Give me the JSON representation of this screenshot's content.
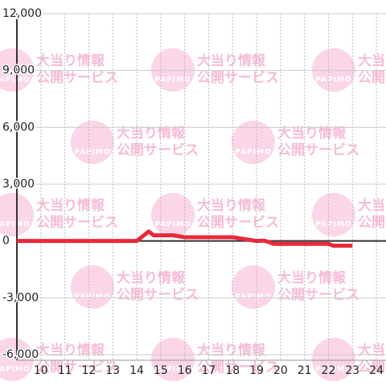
{
  "chart_data": {
    "type": "line",
    "watermark": {
      "line1": "大当り情報",
      "line2": "公開サービス",
      "logo": "PAPIMO"
    },
    "x": [
      9,
      14,
      14.3,
      14.5,
      14.7,
      15.5,
      16,
      18,
      18.5,
      19,
      19.3,
      19.5,
      19.7,
      21,
      22,
      22.2,
      23
    ],
    "series": [
      {
        "color": "#e8283c",
        "values": [
          0,
          0,
          300,
          500,
          300,
          300,
          200,
          200,
          100,
          0,
          20,
          -50,
          -150,
          -150,
          -150,
          -250,
          -250
        ]
      }
    ],
    "xlim": [
      9,
      24.4
    ],
    "xticks": [
      10,
      11,
      12,
      13,
      14,
      15,
      16,
      17,
      18,
      19,
      20,
      21,
      22,
      23,
      24
    ],
    "ylim": [
      -6000,
      12000
    ],
    "yticks": [
      {
        "value": -6000,
        "label": "-6,000"
      },
      {
        "value": -3000,
        "label": "-3,000"
      },
      0,
      {
        "value": 3000,
        "label": "3,000"
      },
      {
        "value": 6000,
        "label": "6,000"
      },
      {
        "value": 9000,
        "label": "9,000"
      },
      {
        "value": 12000,
        "label": "12,000"
      }
    ],
    "grid": true
  }
}
